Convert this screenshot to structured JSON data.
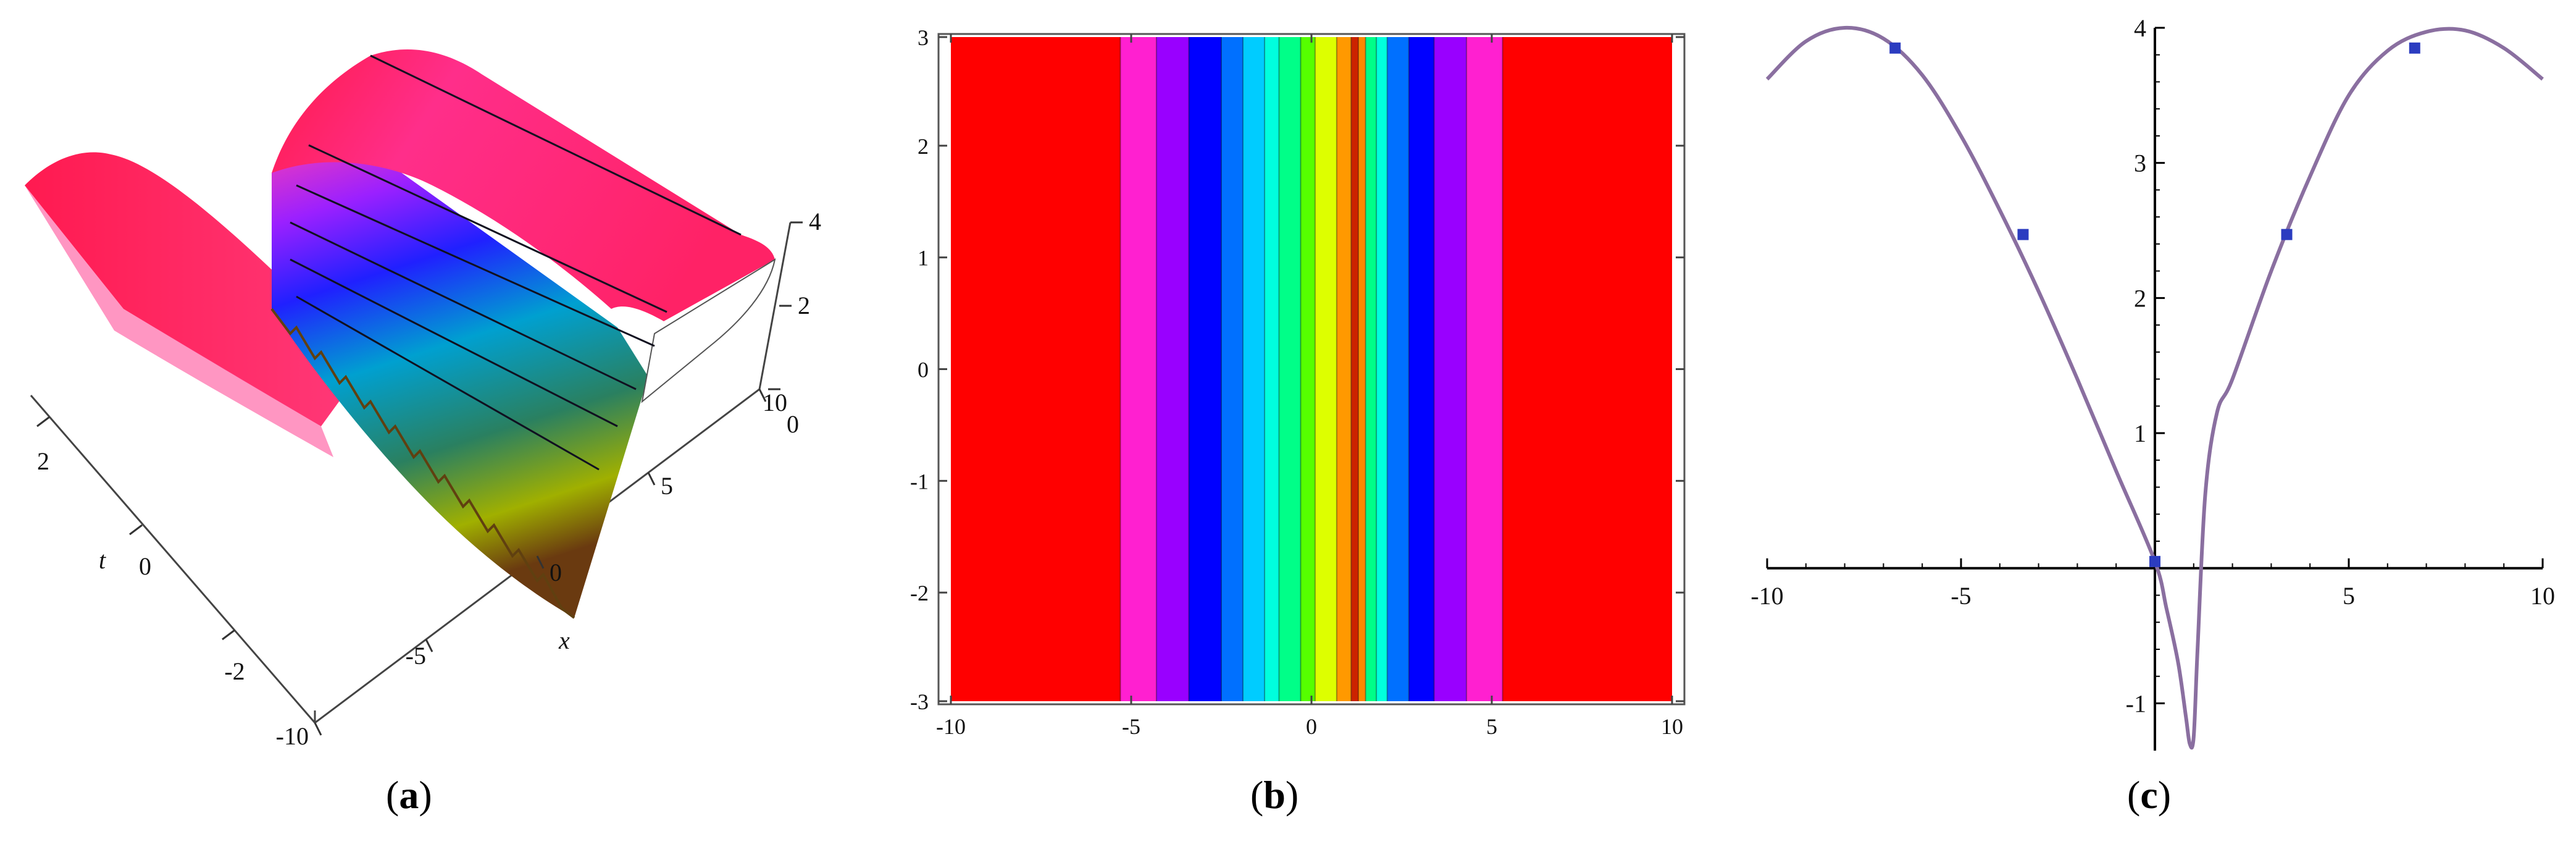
{
  "chart_data": [
    {
      "type": "surface3d",
      "panel": "a",
      "xlabel": "x",
      "ylabel": "t",
      "x_ticks": [
        "-10",
        "-5",
        "0",
        "5",
        "10"
      ],
      "t_ticks": [
        "-2",
        "0",
        "2"
      ],
      "z_ticks": [
        "0",
        "2",
        "4"
      ],
      "xlim": [
        -10,
        10
      ],
      "tlim": [
        -3,
        3
      ],
      "zlim": [
        -1.35,
        4
      ],
      "colors": [
        "#ff1a4a",
        "#ff40b0",
        "#9b20ff",
        "#2020ff",
        "#00d0ff",
        "#00c070",
        "#a0e000"
      ]
    },
    {
      "type": "heatmap",
      "panel": "b",
      "xlim": [
        -10,
        10
      ],
      "ylim": [
        -3,
        3
      ],
      "x_ticks": [
        "-10",
        "-5",
        "0",
        "5",
        "10"
      ],
      "y_ticks": [
        "-3",
        "-2",
        "-1",
        "0",
        "1",
        "2",
        "3"
      ],
      "bands": [
        {
          "x0": -10,
          "x1": -5.3,
          "color": "#ff0000"
        },
        {
          "x0": -5.3,
          "x1": -4.3,
          "color": "#ff20d0"
        },
        {
          "x0": -4.3,
          "x1": -3.4,
          "color": "#9900ff"
        },
        {
          "x0": -3.4,
          "x1": -2.5,
          "color": "#0000ff"
        },
        {
          "x0": -2.5,
          "x1": -1.9,
          "color": "#0070ff"
        },
        {
          "x0": -1.9,
          "x1": -1.3,
          "color": "#00ccff"
        },
        {
          "x0": -1.3,
          "x1": -0.9,
          "color": "#00ffdd"
        },
        {
          "x0": -0.9,
          "x1": -0.3,
          "color": "#00ff88"
        },
        {
          "x0": -0.3,
          "x1": 0.1,
          "color": "#55ff00"
        },
        {
          "x0": 0.1,
          "x1": 0.7,
          "color": "#ddff00"
        },
        {
          "x0": 0.7,
          "x1": 1.1,
          "color": "#ff9900"
        },
        {
          "x0": 1.1,
          "x1": 1.3,
          "color": "#cc2200"
        },
        {
          "x0": 1.3,
          "x1": 1.5,
          "color": "#ff8800"
        },
        {
          "x0": 1.5,
          "x1": 1.8,
          "color": "#00ff88"
        },
        {
          "x0": 1.8,
          "x1": 2.1,
          "color": "#00ffdd"
        },
        {
          "x0": 2.1,
          "x1": 2.7,
          "color": "#0070ff"
        },
        {
          "x0": 2.7,
          "x1": 3.4,
          "color": "#0000ff"
        },
        {
          "x0": 3.4,
          "x1": 4.3,
          "color": "#9900ff"
        },
        {
          "x0": 4.3,
          "x1": 5.3,
          "color": "#ff20d0"
        },
        {
          "x0": 5.3,
          "x1": 10,
          "color": "#ff0000"
        }
      ]
    },
    {
      "type": "line",
      "panel": "c",
      "xlim": [
        -10,
        10
      ],
      "ylim": [
        -1.35,
        4
      ],
      "x_ticks": [
        "-10",
        "-5",
        "0",
        "5",
        "10"
      ],
      "y_ticks": [
        "-1",
        "1",
        "2",
        "3",
        "4"
      ],
      "series": [
        {
          "color": "#8a6fa0",
          "x": [
            -10,
            -9,
            -8,
            -7,
            -6,
            -5,
            -4,
            -3,
            -2,
            -1,
            0,
            0.3,
            0.6,
            0.8,
            0.9,
            1.0,
            1.1,
            1.3,
            1.6,
            2,
            3,
            4,
            5,
            6,
            7,
            8,
            9,
            10
          ],
          "y": [
            3.62,
            3.9,
            4.0,
            3.92,
            3.65,
            3.2,
            2.65,
            2.05,
            1.4,
            0.72,
            0.05,
            -0.3,
            -0.7,
            -1.1,
            -1.3,
            -1.25,
            -0.6,
            0.55,
            1.15,
            1.4,
            2.2,
            2.9,
            3.5,
            3.83,
            3.97,
            3.98,
            3.85,
            3.62
          ]
        }
      ],
      "markers": {
        "color": "#2b3cc0",
        "x": [
          -6.7,
          -3.4,
          0,
          3.4,
          6.7
        ],
        "y": [
          3.85,
          2.47,
          0.05,
          2.47,
          3.85
        ]
      }
    }
  ],
  "captions": [
    {
      "letter": "a",
      "open": "(",
      "close": ")"
    },
    {
      "letter": "b",
      "open": "(",
      "close": ")"
    },
    {
      "letter": "c",
      "open": "(",
      "close": ")"
    }
  ]
}
